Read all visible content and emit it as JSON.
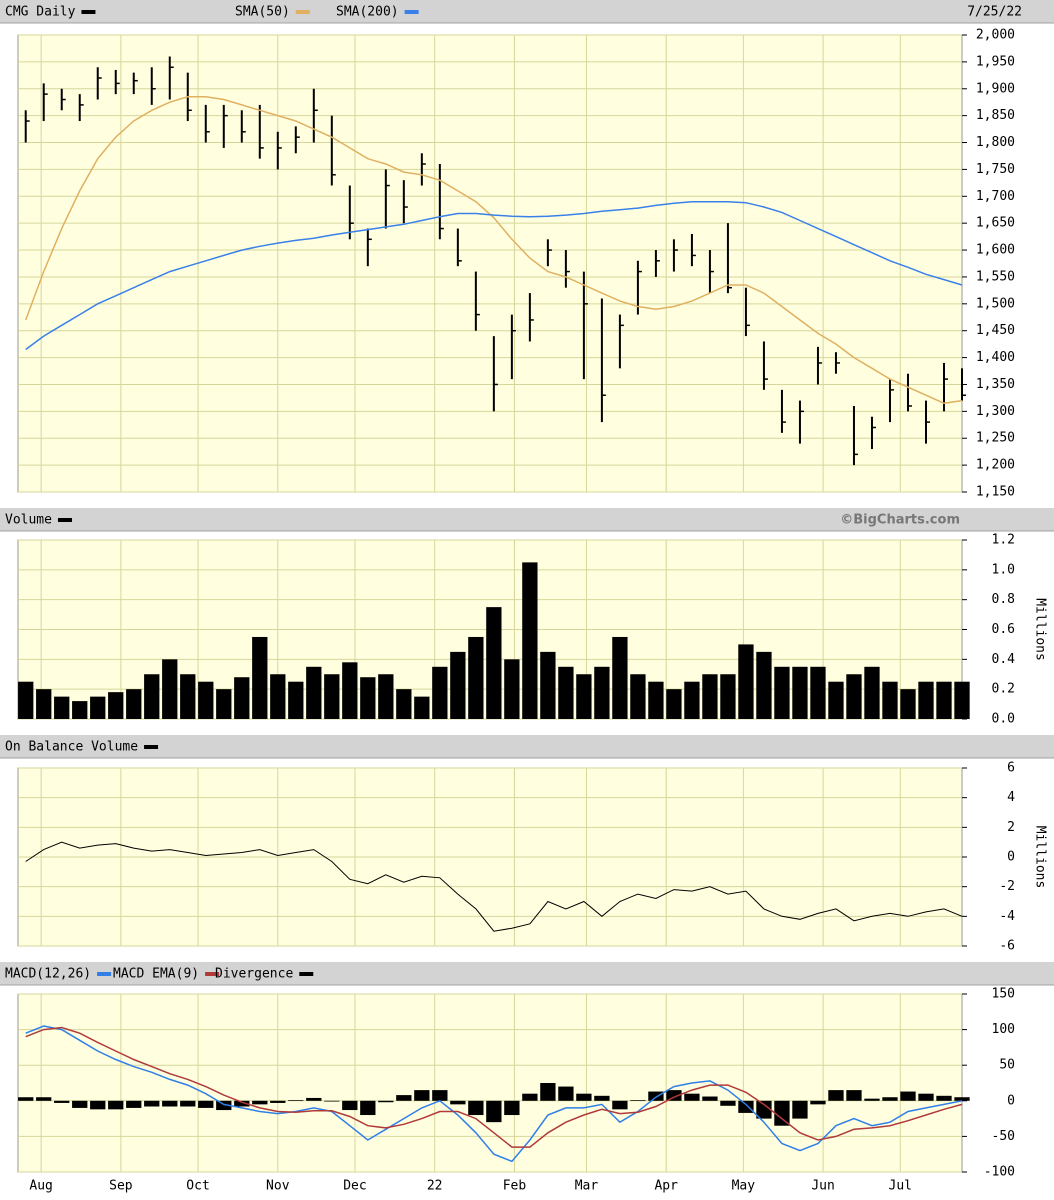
{
  "chart_data": [
    {
      "type": "hlc",
      "date": "7/25/22",
      "x": [
        3,
        10,
        17,
        24,
        31,
        38,
        45,
        52,
        59,
        66,
        73,
        80,
        87,
        94,
        101,
        108,
        115,
        122,
        129,
        136,
        143,
        150,
        157,
        164,
        171,
        178,
        185,
        192,
        199,
        206,
        213,
        220,
        227,
        234,
        241,
        248,
        255,
        262,
        269,
        276,
        283,
        290,
        297,
        304,
        311,
        318,
        325,
        332,
        339,
        346,
        353,
        360,
        367
      ],
      "ylim": [
        1150,
        2000
      ],
      "yticks": [
        {
          "value": 2000,
          "label": "2,000"
        },
        {
          "value": 1950,
          "label": "1,950"
        },
        {
          "value": 1900,
          "label": "1,900"
        },
        {
          "value": 1850,
          "label": "1,850"
        },
        {
          "value": 1800,
          "label": "1,800"
        },
        {
          "value": 1750,
          "label": "1,750"
        },
        {
          "value": 1700,
          "label": "1,700"
        },
        {
          "value": 1650,
          "label": "1,650"
        },
        {
          "value": 1600,
          "label": "1,600"
        },
        {
          "value": 1550,
          "label": "1,550"
        },
        {
          "value": 1500,
          "label": "1,500"
        },
        {
          "value": 1450,
          "label": "1,450"
        },
        {
          "value": 1400,
          "label": "1,400"
        },
        {
          "value": 1350,
          "label": "1,350"
        },
        {
          "value": 1300,
          "label": "1,300"
        },
        {
          "value": 1250,
          "label": "1,250"
        },
        {
          "value": 1200,
          "label": "1,200"
        },
        {
          "value": 1150,
          "label": "1,150"
        }
      ],
      "series": [
        {
          "name": "CMG Daily",
          "color": "#000000",
          "high": [
            1860,
            1910,
            1900,
            1890,
            1940,
            1935,
            1930,
            1940,
            1960,
            1930,
            1870,
            1870,
            1860,
            1870,
            1820,
            1830,
            1900,
            1850,
            1720,
            1640,
            1750,
            1730,
            1780,
            1760,
            1640,
            1560,
            1440,
            1480,
            1520,
            1620,
            1600,
            1560,
            1510,
            1480,
            1580,
            1600,
            1620,
            1630,
            1600,
            1650,
            1530,
            1430,
            1340,
            1320,
            1420,
            1410,
            1310,
            1290,
            1360,
            1370,
            1320,
            1390,
            1380
          ],
          "low": [
            1800,
            1840,
            1860,
            1840,
            1880,
            1890,
            1890,
            1870,
            1880,
            1840,
            1800,
            1790,
            1800,
            1770,
            1750,
            1780,
            1800,
            1720,
            1620,
            1570,
            1640,
            1650,
            1720,
            1620,
            1570,
            1450,
            1300,
            1360,
            1430,
            1570,
            1530,
            1360,
            1280,
            1380,
            1480,
            1550,
            1560,
            1570,
            1520,
            1520,
            1440,
            1340,
            1260,
            1240,
            1350,
            1370,
            1200,
            1230,
            1280,
            1300,
            1240,
            1300,
            1320
          ],
          "close": [
            1840,
            1890,
            1880,
            1870,
            1920,
            1910,
            1915,
            1900,
            1940,
            1860,
            1820,
            1850,
            1820,
            1790,
            1790,
            1810,
            1860,
            1740,
            1650,
            1620,
            1720,
            1680,
            1760,
            1640,
            1580,
            1480,
            1350,
            1450,
            1470,
            1600,
            1560,
            1500,
            1330,
            1460,
            1560,
            1580,
            1600,
            1590,
            1560,
            1530,
            1460,
            1360,
            1280,
            1300,
            1390,
            1390,
            1220,
            1270,
            1340,
            1310,
            1280,
            1360,
            1330
          ]
        },
        {
          "name": "SMA(50)",
          "color": "#e0b060",
          "values": [
            1470,
            1560,
            1640,
            1710,
            1770,
            1810,
            1840,
            1860,
            1875,
            1885,
            1885,
            1880,
            1870,
            1860,
            1850,
            1840,
            1825,
            1810,
            1790,
            1770,
            1760,
            1745,
            1740,
            1730,
            1710,
            1690,
            1660,
            1620,
            1585,
            1560,
            1550,
            1535,
            1520,
            1505,
            1495,
            1490,
            1495,
            1505,
            1520,
            1535,
            1535,
            1520,
            1495,
            1470,
            1445,
            1425,
            1400,
            1380,
            1360,
            1345,
            1330,
            1315,
            1320
          ]
        },
        {
          "name": "SMA(200)",
          "color": "#3a80e8",
          "values": [
            1415,
            1440,
            1460,
            1480,
            1500,
            1515,
            1530,
            1545,
            1560,
            1570,
            1580,
            1590,
            1600,
            1607,
            1613,
            1618,
            1622,
            1628,
            1633,
            1638,
            1643,
            1648,
            1655,
            1662,
            1668,
            1668,
            1665,
            1663,
            1662,
            1663,
            1665,
            1668,
            1672,
            1675,
            1678,
            1683,
            1687,
            1690,
            1690,
            1690,
            1688,
            1680,
            1670,
            1655,
            1640,
            1625,
            1610,
            1595,
            1580,
            1568,
            1555,
            1545,
            1535
          ]
        }
      ]
    },
    {
      "type": "area",
      "source": "©BigCharts.com",
      "ylabel": "Millions",
      "ylim": [
        0,
        1.2
      ],
      "yticks": [
        1.2,
        {
          "value": 1,
          "label": "1.0"
        },
        0.8,
        0.6,
        0.4,
        0.2,
        {
          "value": 0,
          "label": "0.0"
        }
      ],
      "series": [
        {
          "name": "Volume",
          "color": "#000000",
          "values": [
            0.25,
            0.2,
            0.15,
            0.12,
            0.15,
            0.18,
            0.2,
            0.3,
            0.4,
            0.3,
            0.25,
            0.2,
            0.28,
            0.55,
            0.3,
            0.25,
            0.35,
            0.3,
            0.38,
            0.28,
            0.3,
            0.2,
            0.15,
            0.35,
            0.45,
            0.55,
            0.75,
            0.4,
            1.05,
            0.45,
            0.35,
            0.3,
            0.35,
            0.55,
            0.3,
            0.25,
            0.2,
            0.25,
            0.3,
            0.3,
            0.5,
            0.45,
            0.35,
            0.35,
            0.35,
            0.25,
            0.3,
            0.35,
            0.25,
            0.2,
            0.25,
            0.25,
            0.25
          ]
        }
      ]
    },
    {
      "type": "line",
      "ylabel": "Millions",
      "ylim": [
        -6,
        6
      ],
      "yticks": [
        6,
        4,
        2,
        0,
        -2,
        -4,
        -6
      ],
      "series": [
        {
          "name": "On Balance Volume",
          "color": "#000000",
          "values": [
            -0.3,
            0.5,
            1,
            0.6,
            0.8,
            0.9,
            0.6,
            0.4,
            0.5,
            0.3,
            0.1,
            0.2,
            0.3,
            0.5,
            0.1,
            0.3,
            0.5,
            -0.3,
            -1.5,
            -1.8,
            -1.2,
            -1.7,
            -1.3,
            -1.4,
            -2.5,
            -3.5,
            -5,
            -4.8,
            -4.5,
            -3,
            -3.5,
            -3,
            -4,
            -3,
            -2.5,
            -2.8,
            -2.2,
            -2.3,
            -2,
            -2.5,
            -2.3,
            -3.5,
            -4,
            -4.2,
            -3.8,
            -3.5,
            -4.3,
            -4,
            -3.8,
            -4,
            -3.7,
            -3.5,
            -4
          ]
        }
      ]
    },
    {
      "type": "macd",
      "ylim": [
        -100,
        150
      ],
      "yticks": [
        150,
        100,
        50,
        0,
        -50,
        -100
      ],
      "xlim": [
        0,
        367
      ],
      "xticks": [
        {
          "value": 9,
          "label": "Aug"
        },
        {
          "value": 40,
          "label": "Sep"
        },
        {
          "value": 70,
          "label": "Oct"
        },
        {
          "value": 101,
          "label": "Nov"
        },
        {
          "value": 131,
          "label": "Dec"
        },
        {
          "value": 162,
          "label": "22"
        },
        {
          "value": 193,
          "label": "Feb"
        },
        {
          "value": 221,
          "label": "Mar"
        },
        {
          "value": 252,
          "label": "Apr"
        },
        {
          "value": 282,
          "label": "May"
        },
        {
          "value": 313,
          "label": "Jun"
        },
        {
          "value": 343,
          "label": "Jul"
        }
      ],
      "series": [
        {
          "name": "MACD(12,26)",
          "color": "#2f7fe8",
          "kind": "line",
          "values": [
            95,
            105,
            100,
            85,
            70,
            58,
            48,
            40,
            30,
            22,
            10,
            -5,
            -10,
            -15,
            -18,
            -15,
            -10,
            -15,
            -35,
            -55,
            -40,
            -25,
            -10,
            0,
            -20,
            -45,
            -75,
            -85,
            -55,
            -20,
            -10,
            -10,
            -5,
            -30,
            -15,
            5,
            20,
            25,
            28,
            15,
            -5,
            -30,
            -60,
            -70,
            -60,
            -35,
            -25,
            -35,
            -30,
            -15,
            -10,
            -5,
            0
          ]
        },
        {
          "name": "MACD EMA(9)",
          "color": "#b03a3a",
          "kind": "line",
          "values": [
            90,
            100,
            103,
            95,
            82,
            70,
            58,
            48,
            38,
            30,
            20,
            8,
            -2,
            -10,
            -15,
            -16,
            -14,
            -14,
            -22,
            -35,
            -38,
            -33,
            -25,
            -15,
            -15,
            -25,
            -45,
            -65,
            -65,
            -45,
            -30,
            -20,
            -12,
            -18,
            -16,
            -8,
            5,
            15,
            22,
            22,
            12,
            -5,
            -25,
            -45,
            -55,
            -50,
            -40,
            -38,
            -35,
            -28,
            -20,
            -12,
            -5
          ]
        },
        {
          "name": "Divergence",
          "color": "#000000",
          "kind": "bars",
          "values": [
            5,
            5,
            -3,
            -10,
            -12,
            -12,
            -10,
            -8,
            -8,
            -8,
            -10,
            -13,
            -8,
            -5,
            -3,
            1,
            4,
            -1,
            -13,
            -20,
            -2,
            8,
            15,
            15,
            -5,
            -20,
            -30,
            -20,
            10,
            25,
            20,
            10,
            7,
            -12,
            1,
            13,
            15,
            10,
            6,
            -7,
            -17,
            -25,
            -35,
            -25,
            -5,
            15,
            15,
            3,
            5,
            13,
            10,
            7,
            5
          ]
        }
      ]
    }
  ]
}
